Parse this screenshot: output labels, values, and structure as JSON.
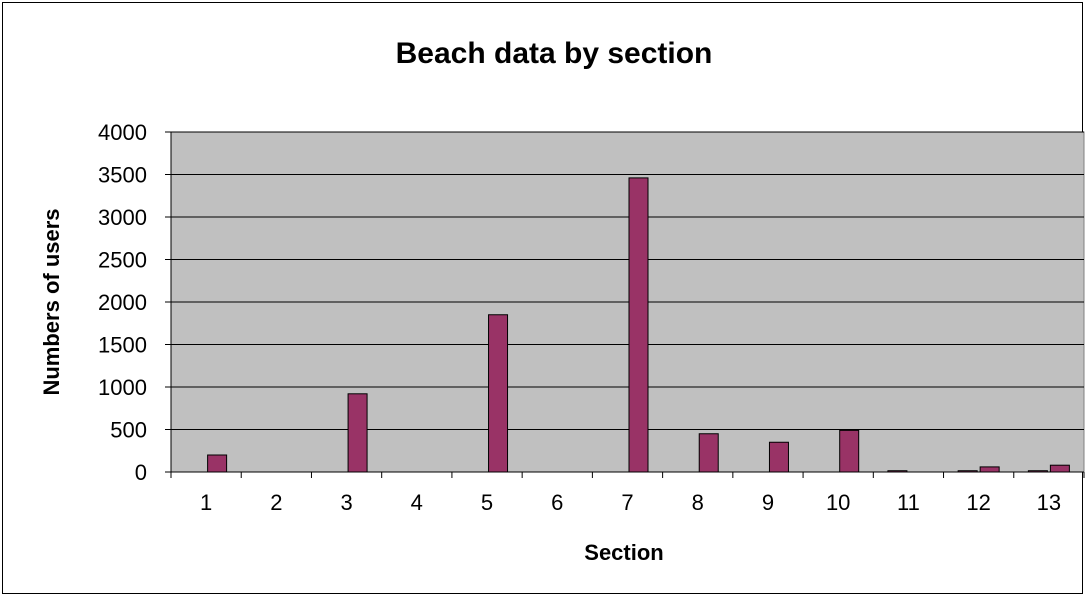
{
  "chart_data": {
    "type": "bar",
    "title": "Beach data by section",
    "xlabel": "Section",
    "ylabel": "Numbers of users",
    "categories": [
      "1",
      "2",
      "3",
      "4",
      "5",
      "6",
      "7",
      "8",
      "9",
      "10",
      "11",
      "12",
      "13"
    ],
    "series": [
      {
        "values": [
          0,
          0,
          0,
          0,
          0,
          0,
          0,
          0,
          0,
          0,
          15,
          15,
          15
        ]
      },
      {
        "values": [
          200,
          0,
          920,
          0,
          1850,
          0,
          3460,
          450,
          350,
          490,
          0,
          60,
          80
        ]
      }
    ],
    "ylim": [
      0,
      4000
    ],
    "yticks": [
      0,
      500,
      1000,
      1500,
      2000,
      2500,
      3000,
      3500,
      4000
    ],
    "grid": true,
    "legend": "none"
  },
  "colors": {
    "plot_background": "#c0c0c0",
    "bar_fill": "#993366",
    "bar_stroke": "#000000",
    "gridline": "#000000"
  }
}
